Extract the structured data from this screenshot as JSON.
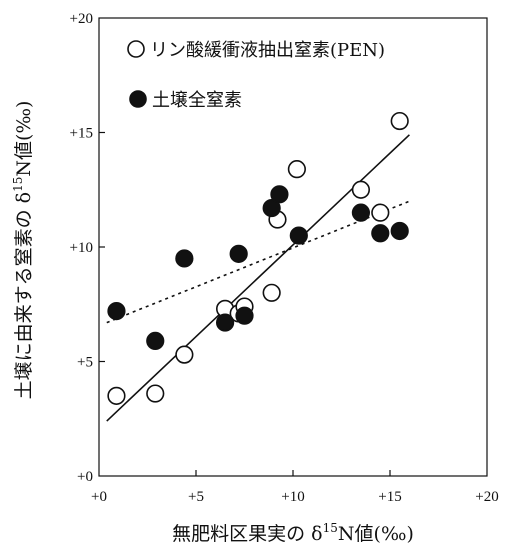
{
  "chart_data": {
    "type": "scatter",
    "xlabel": "無肥料区果実のδ15N値(‰)",
    "ylabel": "土壌に由来する窒素のδ15N値(‰)",
    "xlabel_parts": {
      "pre": "無肥料区果実の δ",
      "sup": "15",
      "post": "N値(‰)"
    },
    "ylabel_parts": {
      "pre": "土壌に由来する窒素の δ",
      "sup": "15",
      "post": "N値(‰)"
    },
    "xlim": [
      0,
      20
    ],
    "ylim": [
      0,
      20
    ],
    "x_ticks": [
      0,
      5,
      10,
      15,
      20
    ],
    "y_ticks": [
      0,
      5,
      10,
      15,
      20
    ],
    "x_tick_labels": [
      "+0",
      "+5",
      "+10",
      "+15",
      "+20"
    ],
    "y_tick_labels": [
      "+0",
      "+5",
      "+10",
      "+15",
      "+20"
    ],
    "grid": false,
    "legend_placement": "top-left",
    "series": [
      {
        "name": "リン酸緩衝液抽出窒素(PEN)",
        "marker": "open-circle",
        "trendline": "solid",
        "trend": {
          "x": [
            0.4,
            16.0
          ],
          "y": [
            2.4,
            14.9
          ]
        },
        "points": [
          {
            "x": 0.9,
            "y": 3.5
          },
          {
            "x": 2.9,
            "y": 3.6
          },
          {
            "x": 4.4,
            "y": 5.3
          },
          {
            "x": 6.5,
            "y": 7.3
          },
          {
            "x": 7.2,
            "y": 7.1
          },
          {
            "x": 7.5,
            "y": 7.4
          },
          {
            "x": 8.9,
            "y": 8.0
          },
          {
            "x": 9.2,
            "y": 11.2
          },
          {
            "x": 10.2,
            "y": 13.4
          },
          {
            "x": 13.5,
            "y": 12.5
          },
          {
            "x": 14.5,
            "y": 11.5
          },
          {
            "x": 15.5,
            "y": 15.5
          }
        ]
      },
      {
        "name": "土壌全窒素",
        "marker": "filled-circle",
        "trendline": "dotted",
        "trend": {
          "x": [
            0.4,
            16.0
          ],
          "y": [
            6.7,
            12.0
          ]
        },
        "points": [
          {
            "x": 0.9,
            "y": 7.2
          },
          {
            "x": 2.9,
            "y": 5.9
          },
          {
            "x": 4.4,
            "y": 9.5
          },
          {
            "x": 6.5,
            "y": 6.7
          },
          {
            "x": 7.2,
            "y": 9.7
          },
          {
            "x": 7.5,
            "y": 7.0
          },
          {
            "x": 8.9,
            "y": 11.7
          },
          {
            "x": 9.3,
            "y": 12.3
          },
          {
            "x": 10.3,
            "y": 10.5
          },
          {
            "x": 13.5,
            "y": 11.5
          },
          {
            "x": 14.5,
            "y": 10.6
          },
          {
            "x": 15.5,
            "y": 10.7
          }
        ]
      }
    ],
    "colors": {
      "marker_edge": "#111111",
      "marker_fill_filled": "#111111",
      "marker_fill_open": "#ffffff",
      "line": "#111111"
    }
  }
}
